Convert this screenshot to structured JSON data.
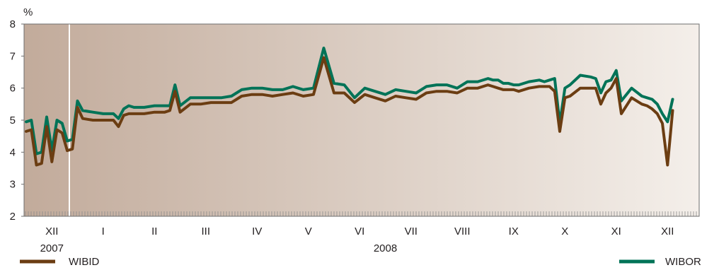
{
  "chart_data": {
    "type": "line",
    "unit_label": "%",
    "ylim": [
      2,
      8
    ],
    "y_ticks": [
      "2",
      "3",
      "4",
      "5",
      "6",
      "7",
      "8"
    ],
    "x_months": [
      "XII",
      "I",
      "II",
      "III",
      "IV",
      "V",
      "VI",
      "VII",
      "VIII",
      "IX",
      "X",
      "XI",
      "XII"
    ],
    "x_years": [
      {
        "label": "2007",
        "month_index": 0
      },
      {
        "label": "2008",
        "month_index": 6.5
      }
    ],
    "x": [
      0.0,
      0.1,
      0.2,
      0.3,
      0.4,
      0.5,
      0.6,
      0.7,
      0.8,
      0.9,
      1.0,
      1.1,
      1.3,
      1.5,
      1.7,
      1.8,
      1.9,
      2.0,
      2.1,
      2.3,
      2.5,
      2.7,
      2.8,
      2.9,
      3.0,
      3.2,
      3.4,
      3.6,
      3.8,
      4.0,
      4.2,
      4.4,
      4.6,
      4.8,
      5.0,
      5.2,
      5.4,
      5.6,
      5.8,
      6.0,
      6.2,
      6.4,
      6.6,
      6.8,
      7.0,
      7.2,
      7.4,
      7.6,
      7.8,
      8.0,
      8.2,
      8.4,
      8.6,
      8.8,
      9.0,
      9.1,
      9.2,
      9.3,
      9.4,
      9.5,
      9.6,
      9.8,
      10.0,
      10.1,
      10.2,
      10.3,
      10.4,
      10.5,
      10.6,
      10.8,
      11.0,
      11.1,
      11.2,
      11.3,
      11.4,
      11.5,
      11.6,
      11.8,
      12.0,
      12.1,
      12.2,
      12.3,
      12.4,
      12.5,
      12.6
    ],
    "series": [
      {
        "name": "WIBID",
        "color": "#6b3d12",
        "values": [
          4.65,
          4.7,
          3.6,
          3.65,
          4.8,
          3.7,
          4.7,
          4.6,
          4.05,
          4.1,
          5.4,
          5.05,
          5.0,
          5.0,
          5.0,
          4.8,
          5.15,
          5.2,
          5.2,
          5.2,
          5.25,
          5.25,
          5.3,
          5.9,
          5.25,
          5.5,
          5.5,
          5.55,
          5.55,
          5.55,
          5.75,
          5.8,
          5.8,
          5.75,
          5.8,
          5.85,
          5.75,
          5.8,
          6.95,
          5.85,
          5.85,
          5.55,
          5.8,
          5.7,
          5.6,
          5.75,
          5.7,
          5.65,
          5.85,
          5.9,
          5.9,
          5.85,
          6.0,
          6.0,
          6.1,
          6.05,
          6.0,
          5.95,
          5.95,
          5.95,
          5.9,
          6.0,
          6.05,
          6.05,
          6.05,
          5.9,
          4.65,
          5.7,
          5.75,
          6.0,
          6.0,
          6.0,
          5.5,
          5.85,
          6.0,
          6.3,
          5.2,
          5.7,
          5.5,
          5.45,
          5.35,
          5.2,
          4.9,
          3.6,
          5.3
        ]
      },
      {
        "name": "WIBOR",
        "color": "#007357",
        "values": [
          4.95,
          5.0,
          3.95,
          4.0,
          5.1,
          4.05,
          5.0,
          4.9,
          4.35,
          4.4,
          5.6,
          5.3,
          5.25,
          5.2,
          5.2,
          5.05,
          5.35,
          5.45,
          5.4,
          5.4,
          5.45,
          5.45,
          5.45,
          6.1,
          5.45,
          5.7,
          5.7,
          5.7,
          5.7,
          5.75,
          5.95,
          6.0,
          6.0,
          5.95,
          5.95,
          6.05,
          5.95,
          6.0,
          7.25,
          6.15,
          6.1,
          5.7,
          6.0,
          5.9,
          5.8,
          5.95,
          5.9,
          5.85,
          6.05,
          6.1,
          6.1,
          6.0,
          6.2,
          6.2,
          6.3,
          6.25,
          6.25,
          6.15,
          6.15,
          6.1,
          6.1,
          6.2,
          6.25,
          6.2,
          6.25,
          6.3,
          4.9,
          6.0,
          6.1,
          6.4,
          6.35,
          6.3,
          5.85,
          6.2,
          6.25,
          6.55,
          5.6,
          6.0,
          5.75,
          5.7,
          5.65,
          5.5,
          5.2,
          4.95,
          5.65
        ]
      }
    ],
    "shading": [
      "#c2ab9b",
      "#f4efea"
    ],
    "grid": false
  }
}
